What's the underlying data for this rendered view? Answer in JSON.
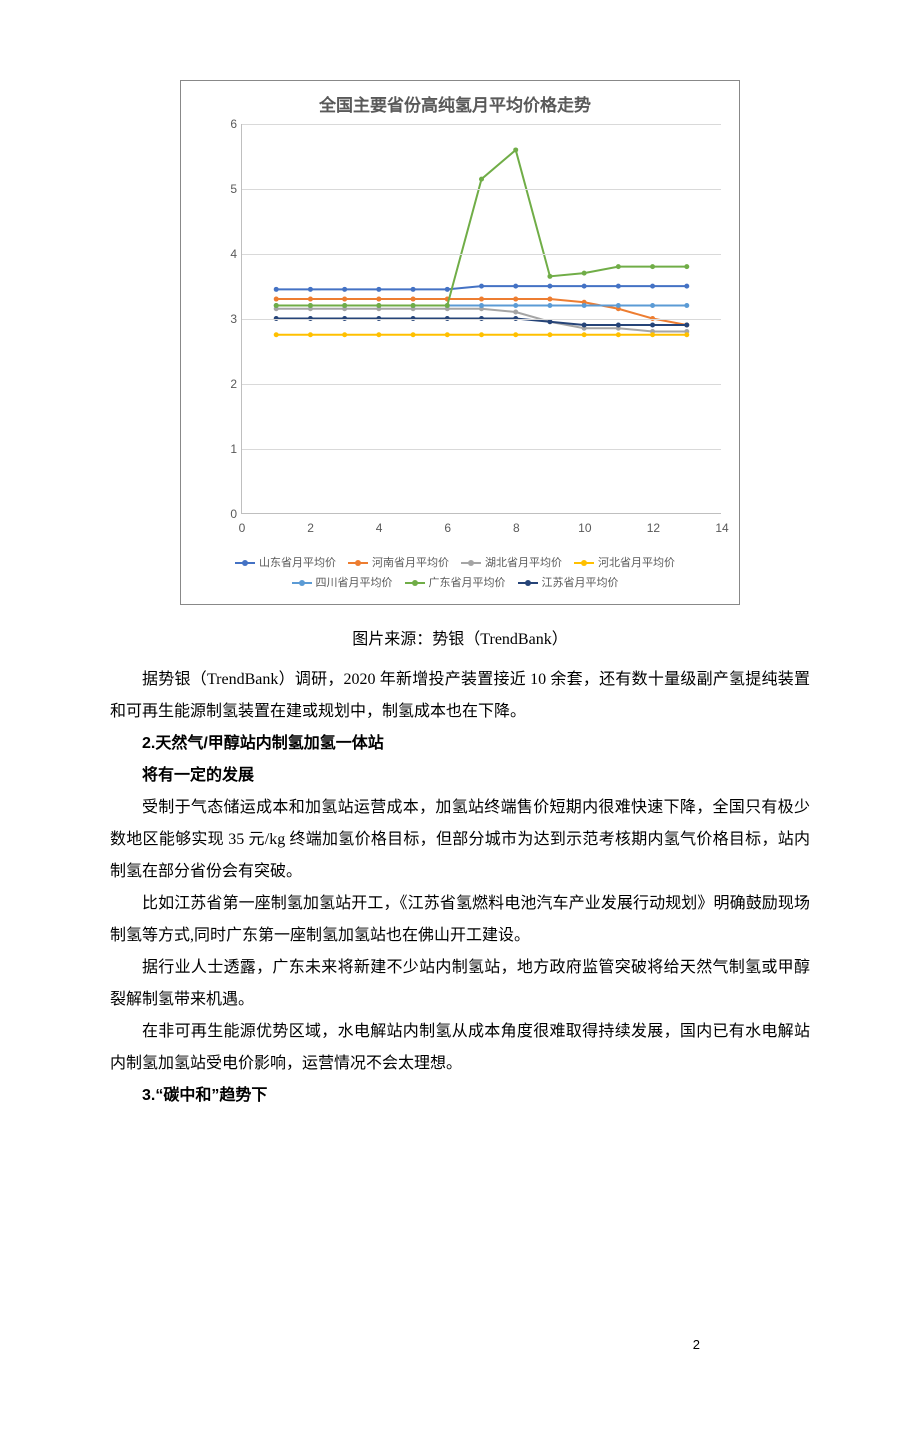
{
  "chart": {
    "title": "全国主要省份高纯氢月平均价格走势",
    "type": "line",
    "xlim": [
      0,
      14
    ],
    "ylim": [
      0,
      6
    ],
    "xtick_step": 2,
    "ytick_step": 1,
    "grid_color": "#d9d9d9",
    "axis_color": "#bfbfbf",
    "background": "#ffffff",
    "title_color": "#595959",
    "label_color": "#595959",
    "title_fontsize": 17,
    "label_fontsize": 12,
    "marker": "circle",
    "marker_size": 5,
    "line_width": 2,
    "series": [
      {
        "name": "山东省月平均价",
        "color": "#4472c4",
        "x": [
          1,
          2,
          3,
          4,
          5,
          6,
          7,
          8,
          9,
          10,
          11,
          12,
          13
        ],
        "y": [
          3.45,
          3.45,
          3.45,
          3.45,
          3.45,
          3.45,
          3.5,
          3.5,
          3.5,
          3.5,
          3.5,
          3.5,
          3.5
        ]
      },
      {
        "name": "河南省月平均价",
        "color": "#ed7d31",
        "x": [
          1,
          2,
          3,
          4,
          5,
          6,
          7,
          8,
          9,
          10,
          11,
          12,
          13
        ],
        "y": [
          3.3,
          3.3,
          3.3,
          3.3,
          3.3,
          3.3,
          3.3,
          3.3,
          3.3,
          3.25,
          3.15,
          3.0,
          2.9
        ]
      },
      {
        "name": "湖北省月平均价",
        "color": "#a5a5a5",
        "x": [
          1,
          2,
          3,
          4,
          5,
          6,
          7,
          8,
          9,
          10,
          11,
          12,
          13
        ],
        "y": [
          3.15,
          3.15,
          3.15,
          3.15,
          3.15,
          3.15,
          3.15,
          3.1,
          2.95,
          2.85,
          2.85,
          2.8,
          2.8
        ]
      },
      {
        "name": "河北省月平均价",
        "color": "#ffc000",
        "x": [
          1,
          2,
          3,
          4,
          5,
          6,
          7,
          8,
          9,
          10,
          11,
          12,
          13
        ],
        "y": [
          2.75,
          2.75,
          2.75,
          2.75,
          2.75,
          2.75,
          2.75,
          2.75,
          2.75,
          2.75,
          2.75,
          2.75,
          2.75
        ]
      },
      {
        "name": "四川省月平均价",
        "color": "#5b9bd5",
        "x": [
          1,
          2,
          3,
          4,
          5,
          6,
          7,
          8,
          9,
          10,
          11,
          12,
          13
        ],
        "y": [
          3.2,
          3.2,
          3.2,
          3.2,
          3.2,
          3.2,
          3.2,
          3.2,
          3.2,
          3.2,
          3.2,
          3.2,
          3.2
        ]
      },
      {
        "name": "广东省月平均价",
        "color": "#70ad47",
        "x": [
          1,
          2,
          3,
          4,
          5,
          6,
          7,
          8,
          9,
          10,
          11,
          12,
          13
        ],
        "y": [
          3.2,
          3.2,
          3.2,
          3.2,
          3.2,
          3.2,
          5.15,
          5.6,
          3.65,
          3.7,
          3.8,
          3.8,
          3.8
        ]
      },
      {
        "name": "江苏省月平均价",
        "color": "#264478",
        "x": [
          1,
          2,
          3,
          4,
          5,
          6,
          7,
          8,
          9,
          10,
          11,
          12,
          13
        ],
        "y": [
          3.0,
          3.0,
          3.0,
          3.0,
          3.0,
          3.0,
          3.0,
          3.0,
          2.95,
          2.9,
          2.9,
          2.9,
          2.9
        ]
      }
    ]
  },
  "caption": "图片来源：势银（TrendBank）",
  "p1": "据势银（TrendBank）调研，2020 年新增投产装置接近 10 余套，还有数十量级副产氢提纯装置和可再生能源制氢装置在建或规划中，制氢成本也在下降。",
  "h2": "2.天然气/甲醇站内制氢加氢一体站",
  "h2b": "将有一定的发展",
  "p2": "受制于气态储运成本和加氢站运营成本，加氢站终端售价短期内很难快速下降，全国只有极少数地区能够实现 35 元/kg 终端加氢价格目标，但部分城市为达到示范考核期内氢气价格目标，站内制氢在部分省份会有突破。",
  "p3": "比如江苏省第一座制氢加氢站开工，《江苏省氢燃料电池汽车产业发展行动规划》明确鼓励现场制氢等方式,同时广东第一座制氢加氢站也在佛山开工建设。",
  "p4": "据行业人士透露，广东未来将新建不少站内制氢站，地方政府监管突破将给天然气制氢或甲醇裂解制氢带来机遇。",
  "p5": "在非可再生能源优势区域，水电解站内制氢从成本角度很难取得持续发展，国内已有水电解站内制氢加氢站受电价影响，运营情况不会太理想。",
  "h3": "3.“碳中和”趋势下",
  "page": "2"
}
